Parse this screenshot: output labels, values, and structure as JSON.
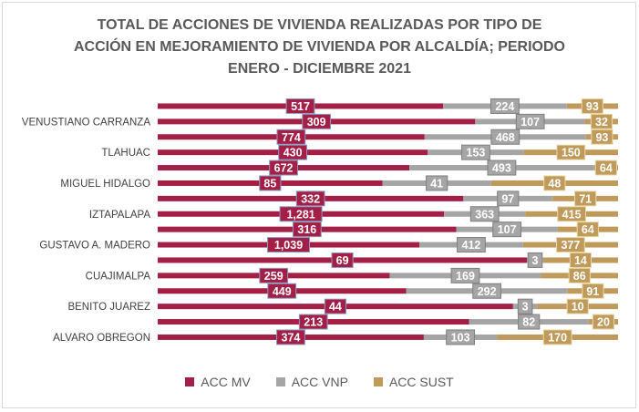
{
  "chart_data": {
    "type": "bar",
    "orientation": "horizontal",
    "stacked": "100%",
    "title_lines": [
      "TOTAL DE ACCIONES DE VIVIENDA REALIZADAS POR TIPO DE",
      "ACCIÓN EN MEJORAMIENTO DE VIVIENDA POR ALCALDÍA; PERIODO",
      "ENERO - DICIEMBRE 2021"
    ],
    "categories": [
      "",
      "VENUSTIANO CARRANZA",
      "",
      "TLAHUAC",
      "",
      "MIGUEL HIDALGO",
      "",
      "IZTAPALAPA",
      "",
      "GUSTAVO A. MADERO",
      "",
      "CUAJIMALPA",
      "",
      "BENITO JUAREZ",
      "",
      "ALVARO OBREGON"
    ],
    "series": [
      {
        "name": "ACC MV",
        "color": "#a31f46",
        "values": [
          517,
          309,
          774,
          430,
          672,
          85,
          332,
          1281,
          316,
          1039,
          69,
          259,
          449,
          44,
          213,
          374
        ]
      },
      {
        "name": "ACC VNP",
        "color": "#a5a5a5",
        "values": [
          224,
          107,
          468,
          153,
          493,
          41,
          97,
          363,
          107,
          412,
          3,
          169,
          292,
          3,
          82,
          103
        ]
      },
      {
        "name": "ACC SUST",
        "color": "#c09a5b",
        "values": [
          93,
          32,
          93,
          150,
          64,
          48,
          71,
          415,
          64,
          377,
          14,
          86,
          91,
          10,
          20,
          170
        ]
      }
    ],
    "legend_position": "bottom",
    "grid": false
  }
}
